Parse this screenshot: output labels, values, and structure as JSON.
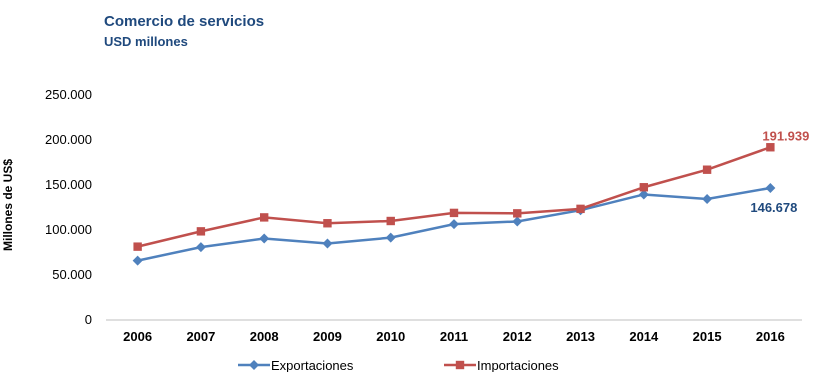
{
  "chart_data": {
    "type": "line",
    "title": "Comercio de servicios",
    "subtitle": "USD millones",
    "ylabel": "Millones de US$",
    "xlabel": "",
    "categories": [
      "2006",
      "2007",
      "2008",
      "2009",
      "2010",
      "2011",
      "2012",
      "2013",
      "2014",
      "2015",
      "2016"
    ],
    "ylim": [
      0,
      250000
    ],
    "yticks": [
      0,
      50000,
      100000,
      150000,
      200000,
      250000
    ],
    "ytick_labels": [
      "0",
      "50.000",
      "100.000",
      "150.000",
      "200.000",
      "250.000"
    ],
    "grid": false,
    "legend_position": "bottom",
    "series": [
      {
        "name": "Exportaciones",
        "color": "#4f81bd",
        "marker": "diamond",
        "values": [
          66000,
          81000,
          90500,
          85000,
          91500,
          106500,
          109500,
          122000,
          139500,
          134500,
          146678
        ],
        "end_label": "146.678",
        "end_label_color": "#1f497d"
      },
      {
        "name": "Importaciones",
        "color": "#c0504d",
        "marker": "square",
        "values": [
          81500,
          98500,
          114000,
          107500,
          110000,
          119000,
          118500,
          123500,
          147500,
          167000,
          191939
        ],
        "end_label": "191.939",
        "end_label_color": "#c0504d"
      }
    ]
  }
}
